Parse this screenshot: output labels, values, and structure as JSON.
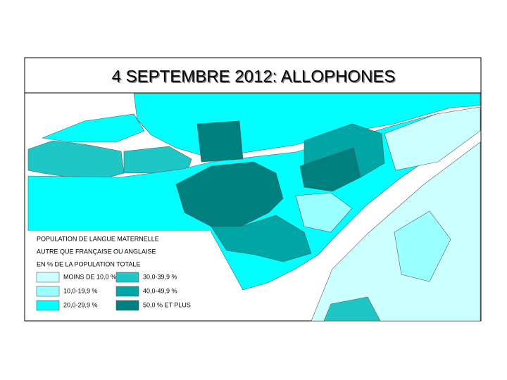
{
  "title": "4 SEPTEMBRE 2012: ALLOPHONES",
  "legend": {
    "title_lines": [
      "POPULATION DE LANGUE MATERNELLE",
      "AUTRE QUE FRANÇAISE OU ANGLAISE",
      "EN % DE LA POPULATION TOTALE"
    ],
    "items": [
      {
        "label": "MOINS DE 10,0 %",
        "color": "#ccffff"
      },
      {
        "label": "10,0-19,9 %",
        "color": "#99ffff"
      },
      {
        "label": "20,0-29,9 %",
        "color": "#00ffff"
      },
      {
        "label": "30,0-39,9 %",
        "color": "#1fc6c6"
      },
      {
        "label": "40,0-49,9 %",
        "color": "#00a6a6"
      },
      {
        "label": "50,0 % ET PLUS",
        "color": "#007f7f"
      }
    ]
  }
}
